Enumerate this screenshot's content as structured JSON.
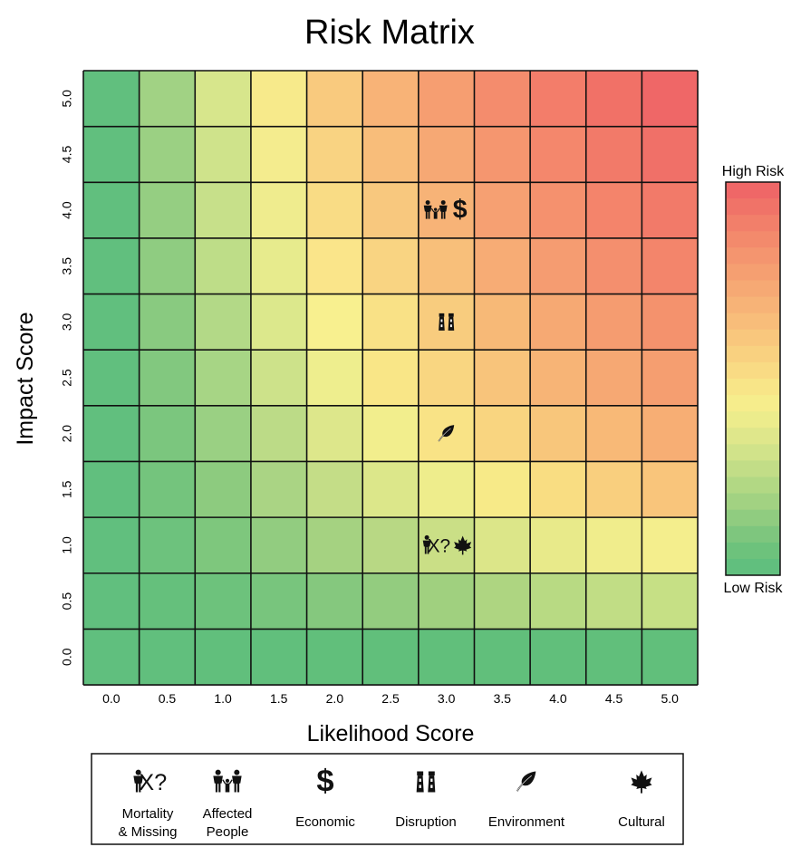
{
  "chart_data": {
    "type": "heatmap",
    "title": "Risk Matrix",
    "xlabel": "Likelihood Score",
    "ylabel": "Impact Score",
    "x_ticks": [
      "0.0",
      "0.5",
      "1.0",
      "1.5",
      "2.0",
      "2.5",
      "3.0",
      "3.5",
      "4.0",
      "4.5",
      "5.0"
    ],
    "y_ticks": [
      "0.0",
      "0.5",
      "1.0",
      "1.5",
      "2.0",
      "2.5",
      "3.0",
      "3.5",
      "4.0",
      "4.5",
      "5.0"
    ],
    "grid": true,
    "cell_colors": [
      [
        "#60bf7e",
        "#61bf7d",
        "#61bf7c",
        "#61bf7c",
        "#61bf7b",
        "#61bf7b",
        "#61bf7b",
        "#61bf7b",
        "#61bf7b",
        "#61bf7b",
        "#61bf7b"
      ],
      [
        "#61bf7e",
        "#65c07c",
        "#6dc27c",
        "#78c57d",
        "#85c87e",
        "#93cc7f",
        "#a0d07f",
        "#aed581",
        "#b8da83",
        "#c1dd85",
        "#c6e085"
      ],
      [
        "#61bf7e",
        "#6dc27d",
        "#7ec77d",
        "#92cc80",
        "#a5d281",
        "#b8d884",
        "#cadf86",
        "#dce689",
        "#e8ea8a",
        "#f0ed8c",
        "#f4ee8d"
      ],
      [
        "#61bf7e",
        "#74c47d",
        "#8dcb7f",
        "#aad484",
        "#c4dd87",
        "#dce78a",
        "#eeed8c",
        "#f7ea88",
        "#f9dd82",
        "#f9cf7e",
        "#f9c57b"
      ],
      [
        "#61bf7e",
        "#7bc67e",
        "#9ad083",
        "#bcdb87",
        "#dde78b",
        "#f2ee8d",
        "#f9e386",
        "#f9d580",
        "#f8c67b",
        "#f8b977",
        "#f7ae74"
      ],
      [
        "#61bf7e",
        "#82c87f",
        "#a7d585",
        "#cde28a",
        "#eeee8e",
        "#f9e687",
        "#f9d681",
        "#f8c47b",
        "#f7b476",
        "#f6a873",
        "#f59e70"
      ],
      [
        "#61bf7e",
        "#89ca80",
        "#b3d987",
        "#dce88c",
        "#f8f08f",
        "#f9e186",
        "#f8cc7e",
        "#f7b977",
        "#f6a973",
        "#f59c70",
        "#f4926d"
      ],
      [
        "#61bf7e",
        "#8fcc81",
        "#bedd88",
        "#e7eb8d",
        "#fae58a",
        "#f9d482",
        "#f8bf7a",
        "#f7ac75",
        "#f59c71",
        "#f48f6e",
        "#f3856b"
      ],
      [
        "#61bf7e",
        "#95ce82",
        "#c7e08a",
        "#efec8e",
        "#f9dc85",
        "#f8c87e",
        "#f7b377",
        "#f6a072",
        "#f5916e",
        "#f4846b",
        "#f27a69"
      ],
      [
        "#61bf7e",
        "#9bd083",
        "#cfe38b",
        "#f4ec8e",
        "#f9d382",
        "#f8bd7a",
        "#f6a874",
        "#f5966f",
        "#f4876c",
        "#f27a69",
        "#f07068"
      ],
      [
        "#61bf7e",
        "#a1d284",
        "#d7e68c",
        "#f7ea8b",
        "#f9ca7e",
        "#f8b377",
        "#f69e71",
        "#f48c6d",
        "#f37d6a",
        "#f17167",
        "#ef6767"
      ]
    ],
    "markers": [
      {
        "x": 3.0,
        "y": 4.0,
        "icons": [
          "affected-people",
          "economic"
        ]
      },
      {
        "x": 3.0,
        "y": 3.0,
        "icons": [
          "disruption"
        ]
      },
      {
        "x": 3.0,
        "y": 2.0,
        "icons": [
          "environment"
        ]
      },
      {
        "x": 3.0,
        "y": 1.0,
        "icons": [
          "mortality-missing",
          "cultural"
        ]
      }
    ],
    "colorbar": {
      "top_label": "High Risk",
      "bottom_label": "Low Risk",
      "colors": [
        "#ef6767",
        "#f07368",
        "#f27f6a",
        "#f38a6c",
        "#f4956f",
        "#f59f71",
        "#f6a974",
        "#f7b377",
        "#f8bd7a",
        "#f9c77d",
        "#f9d180",
        "#f9db84",
        "#f8e588",
        "#f6ed8c",
        "#ecec8c",
        "#dfe78b",
        "#d1e38a",
        "#c2dd87",
        "#b2d884",
        "#a2d282",
        "#90cc80",
        "#7ec67e",
        "#6dc27c",
        "#61bf7e"
      ]
    }
  },
  "legend": {
    "items": [
      {
        "key": "mortality-missing",
        "label_lines": [
          "Mortality",
          "& Missing"
        ]
      },
      {
        "key": "affected-people",
        "label_lines": [
          "Affected",
          "People"
        ]
      },
      {
        "key": "economic",
        "label_lines": [
          "Economic"
        ]
      },
      {
        "key": "disruption",
        "label_lines": [
          "Disruption"
        ]
      },
      {
        "key": "environment",
        "label_lines": [
          "Environment"
        ]
      },
      {
        "key": "cultural",
        "label_lines": [
          "Cultural"
        ]
      }
    ]
  }
}
